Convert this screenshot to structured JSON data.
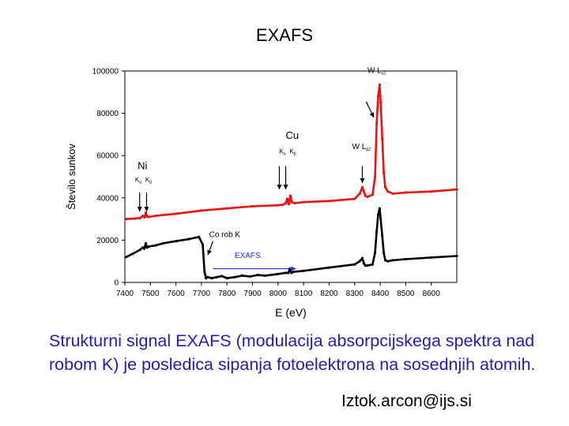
{
  "slide": {
    "title": "EXAFS",
    "caption": "Strukturni signal EXAFS (modulacija absorpcijskega spektra nad robom K) je posledica sipanja fotoelektrona na sosednjih atomih.",
    "email": "Iztok.arcon@ijs.si"
  },
  "chart_data": {
    "type": "line",
    "xlabel": "E (eV)",
    "ylabel": "Število sunkov",
    "xlim": [
      7400,
      8700
    ],
    "ylim": [
      0,
      100000
    ],
    "xticks": [
      "7400",
      "7500",
      "7600",
      "7700",
      "7800",
      "7900",
      "8000",
      "8100",
      "8200",
      "8300",
      "8400",
      "8500",
      "8600"
    ],
    "yticks": [
      "0",
      "20000",
      "40000",
      "60000",
      "80000",
      "100000"
    ],
    "grid": false,
    "series": [
      {
        "color": "#ee1111",
        "x": [
          7405,
          7440,
          7460,
          7470,
          7476,
          7482,
          7487,
          7495,
          7520,
          7600,
          7700,
          7800,
          7900,
          8000,
          8020,
          8030,
          8036,
          8042,
          8048,
          8054,
          8065,
          8100,
          8200,
          8300,
          8320,
          8330,
          8336,
          8342,
          8350,
          8370,
          8380,
          8386,
          8392,
          8398,
          8402,
          8408,
          8414,
          8420,
          8430,
          8450,
          8500,
          8600,
          8700
        ],
        "y": [
          30000,
          30200,
          30500,
          31500,
          30800,
          33000,
          31000,
          31000,
          31500,
          32500,
          34000,
          35000,
          36000,
          36500,
          36800,
          37500,
          39500,
          37000,
          41000,
          38000,
          37500,
          38000,
          38500,
          39500,
          42000,
          45000,
          43000,
          41000,
          40500,
          41500,
          50000,
          75000,
          88000,
          93500,
          85000,
          68000,
          52000,
          45000,
          43000,
          42000,
          42500,
          43000,
          44000
        ]
      },
      {
        "color": "#000000",
        "x": [
          7405,
          7430,
          7460,
          7470,
          7476,
          7482,
          7487,
          7495,
          7520,
          7550,
          7600,
          7650,
          7690,
          7705,
          7712,
          7718,
          7725,
          7740,
          7760,
          7780,
          7800,
          7830,
          7860,
          7890,
          7920,
          7950,
          8000,
          8030,
          8040,
          8046,
          8052,
          8060,
          8100,
          8200,
          8300,
          8320,
          8330,
          8336,
          8342,
          8350,
          8370,
          8380,
          8386,
          8392,
          8398,
          8402,
          8408,
          8414,
          8420,
          8430,
          8450,
          8500,
          8600,
          8700
        ],
        "y": [
          12000,
          13500,
          15500,
          16500,
          16000,
          18500,
          16500,
          17000,
          17500,
          18500,
          19500,
          20500,
          21500,
          18000,
          5000,
          2000,
          2500,
          2000,
          2500,
          3000,
          2000,
          2500,
          3200,
          2800,
          3500,
          3200,
          4000,
          4500,
          4500,
          6500,
          4500,
          5000,
          5500,
          7000,
          8500,
          10000,
          11500,
          9000,
          8000,
          8000,
          8500,
          14000,
          24000,
          32000,
          35000,
          30000,
          22000,
          14000,
          10500,
          10000,
          10500,
          11000,
          11800,
          12500
        ]
      }
    ],
    "annotations": [
      {
        "text": "W L",
        "sub": "α1",
        "x": 8350,
        "y": 99000
      },
      {
        "text": "Cu",
        "sub": "",
        "x": 8030,
        "y": 68000
      },
      {
        "text": "K",
        "sub": "α",
        "x": 8005,
        "y": 61000
      },
      {
        "text": "K",
        "sub": "β",
        "x": 8045,
        "y": 61000
      },
      {
        "text": "W L",
        "sub": "β2",
        "x": 8290,
        "y": 63000
      },
      {
        "text": "Ni",
        "sub": "",
        "x": 7450,
        "y": 53500
      },
      {
        "text": "K",
        "sub": "α",
        "x": 7440,
        "y": 47500
      },
      {
        "text": "K",
        "sub": "β",
        "x": 7480,
        "y": 47500
      },
      {
        "text": "Co rob K",
        "sub": "",
        "x": 7730,
        "y": 21500
      },
      {
        "text": "EXAFS",
        "sub": "",
        "x": 7830,
        "y": 11500
      }
    ],
    "arrows": [
      {
        "from": [
          8345,
          85500
        ],
        "to": [
          8375,
          78000
        ],
        "color": "#000000"
      },
      {
        "from": [
          8005,
          55000
        ],
        "to": [
          8005,
          44000
        ],
        "color": "#000000"
      },
      {
        "from": [
          8030,
          55000
        ],
        "to": [
          8030,
          44000
        ],
        "color": "#000000"
      },
      {
        "from": [
          8330,
          55000
        ],
        "to": [
          8330,
          47000
        ],
        "color": "#000000"
      },
      {
        "from": [
          7458,
          42500
        ],
        "to": [
          7458,
          33500
        ],
        "color": "#000000"
      },
      {
        "from": [
          7485,
          42500
        ],
        "to": [
          7485,
          33500
        ],
        "color": "#000000"
      },
      {
        "from": [
          7745,
          19500
        ],
        "to": [
          7725,
          13000
        ],
        "color": "#000000"
      },
      {
        "from": [
          7745,
          6500
        ],
        "to": [
          8070,
          6500
        ],
        "color": "#2233dd"
      }
    ]
  }
}
